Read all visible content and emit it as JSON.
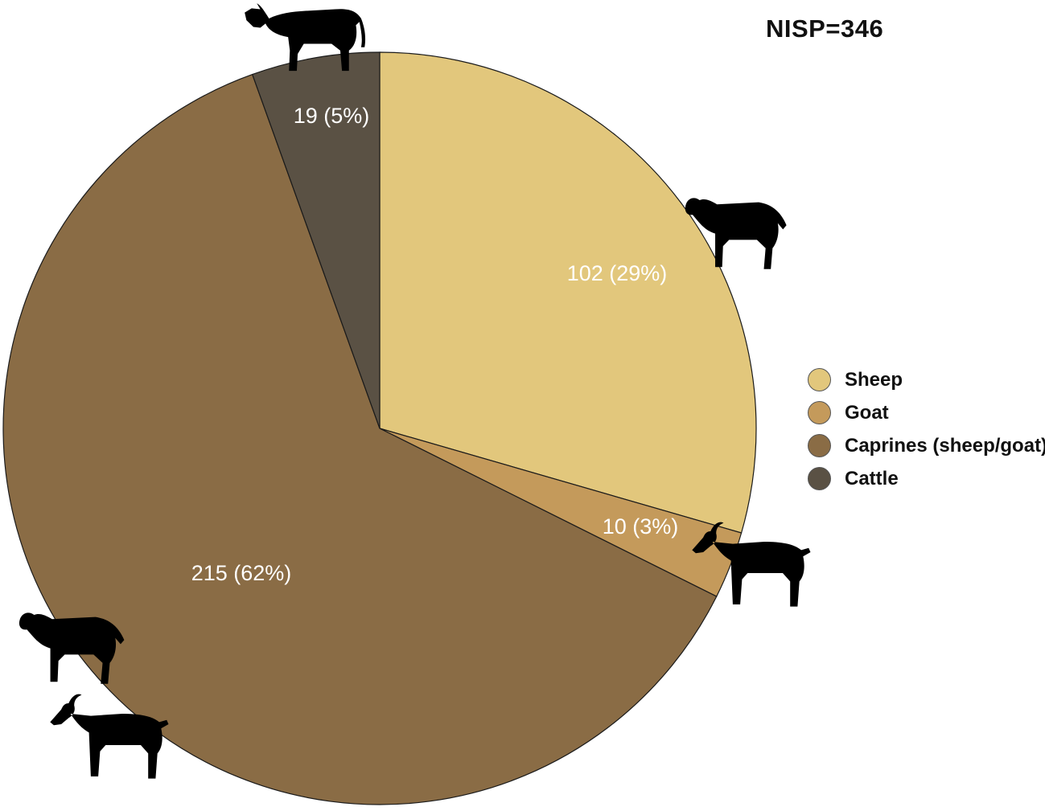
{
  "chart_data": {
    "type": "pie",
    "title": "NISP=346",
    "total": 346,
    "categories": [
      "Sheep",
      "Goat",
      "Caprines (sheep/goat)",
      "Cattle"
    ],
    "values": [
      102,
      10,
      215,
      19
    ],
    "labels": [
      "102 (29%)",
      "10 (3%)",
      "215 (62%)",
      "19 (5%)"
    ],
    "colors": [
      "#E2C77C",
      "#C49A5B",
      "#8A6C45",
      "#5A5144"
    ],
    "start": "12 o'clock",
    "direction": "clockwise",
    "legend_position": "right",
    "icons": [
      "cow-icon",
      "sheep-icon",
      "goat-icon",
      "sheep-icon",
      "goat-icon"
    ]
  }
}
